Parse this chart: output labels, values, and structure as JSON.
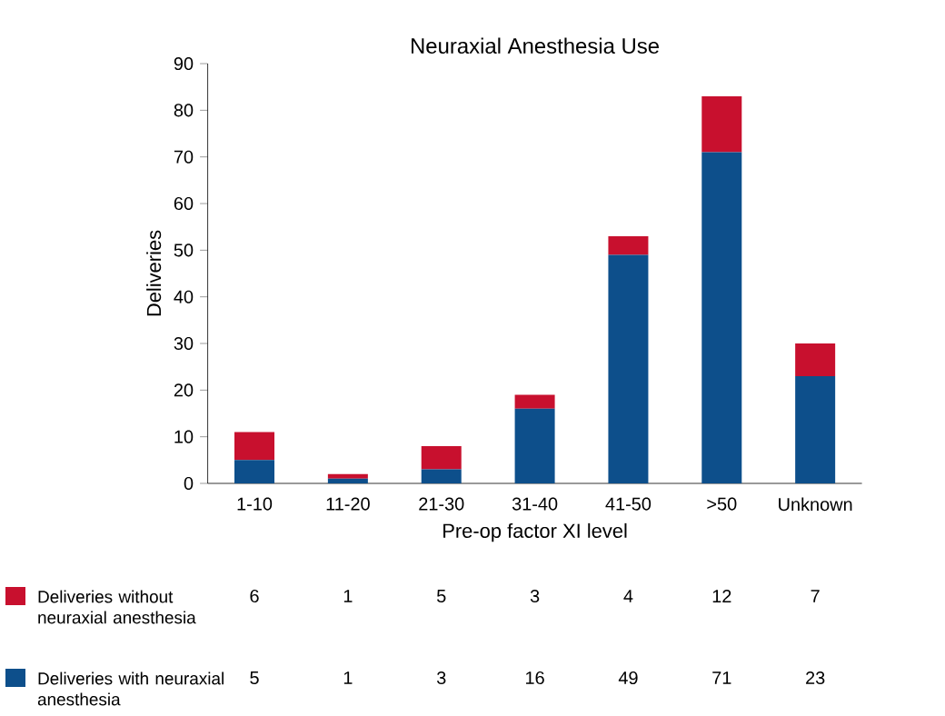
{
  "chart_data": {
    "type": "bar",
    "title": "Neuraxial Anesthesia Use",
    "xlabel": "Pre-op factor XI level",
    "ylabel": "Deliveries",
    "categories": [
      "1-10",
      "11-20",
      "21-30",
      "31-40",
      "41-50",
      ">50",
      "Unknown"
    ],
    "series": [
      {
        "name": "Deliveries with neuraxial anesthesia",
        "color": "#0d4f8b",
        "values": [
          5,
          1,
          3,
          16,
          49,
          71,
          23
        ]
      },
      {
        "name": "Deliveries without neuraxial anesthesia",
        "color": "#c8102e",
        "values": [
          6,
          1,
          5,
          3,
          4,
          12,
          7
        ]
      }
    ],
    "stacked": true,
    "ylim": [
      0,
      90
    ],
    "yticks": [
      0,
      10,
      20,
      30,
      40,
      50,
      60,
      70,
      80,
      90
    ],
    "data_labels": true,
    "legend": "bottom left",
    "grid": false
  }
}
